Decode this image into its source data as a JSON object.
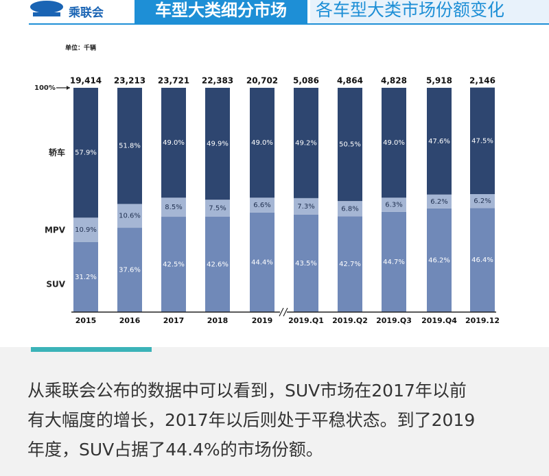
{
  "header": {
    "org": "乘联会",
    "section": "车型大类细分市场",
    "title": "各车型大类市场份额变化"
  },
  "chart_data": {
    "type": "stacked_bar",
    "unit": "单位：千辆",
    "categories": [
      "2015",
      "2016",
      "2017",
      "2018",
      "2019",
      "2019.Q1",
      "2019.Q2",
      "2019.Q3",
      "2019.Q4",
      "2019.12"
    ],
    "totals": {
      "values": [
        19414,
        23213,
        23721,
        22383,
        20702,
        5086,
        4864,
        4828,
        5918,
        2146
      ],
      "value_labels": [
        "19,414",
        "23,213",
        "23,721",
        "22,383",
        "20,702",
        "5,086",
        "4,864",
        "4,828",
        "5,918",
        "2,146"
      ]
    },
    "series": [
      {
        "name": "SUV",
        "color": "#7089b8",
        "label_color": "#ffffff",
        "values": [
          31.2,
          37.6,
          42.5,
          42.6,
          44.4,
          43.5,
          42.7,
          44.7,
          46.2,
          46.4
        ],
        "value_labels": [
          "31.2%",
          "37.6%",
          "42.5%",
          "42.6%",
          "44.4%",
          "43.5%",
          "42.7%",
          "44.7%",
          "46.2%",
          "46.4%"
        ]
      },
      {
        "name": "MPV",
        "color": "#a5b6d4",
        "label_color": "#1f2f4f",
        "values": [
          10.9,
          10.6,
          8.5,
          7.5,
          6.6,
          7.3,
          6.8,
          6.3,
          6.2,
          6.2
        ],
        "value_labels": [
          "10.9%",
          "10.6%",
          "8.5%",
          "7.5%",
          "6.6%",
          "7.3%",
          "6.8%",
          "6.3%",
          "6.2%",
          "6.2%"
        ]
      },
      {
        "name": "轿车",
        "color": "#2e4670",
        "label_color": "#ffffff",
        "values": [
          57.9,
          51.8,
          49.0,
          49.9,
          49.0,
          49.2,
          50.5,
          49.0,
          47.6,
          47.5
        ],
        "value_labels": [
          "57.9%",
          "51.8%",
          "49.0%",
          "49.9%",
          "49.0%",
          "49.2%",
          "50.5%",
          "49.0%",
          "47.6%",
          "47.5%"
        ]
      }
    ],
    "ylim": [
      0,
      100
    ],
    "yticks": [
      {
        "value": 100,
        "label": "100%"
      }
    ]
  },
  "article": {
    "lines": [
      "从乘联会公布的数据中可以看到，SUV市场在2017年以前",
      "有大幅度的增长，2017年以后则处于平稳状态。到了2019",
      "年度，SUV占据了44.4%的市场份额。"
    ]
  }
}
